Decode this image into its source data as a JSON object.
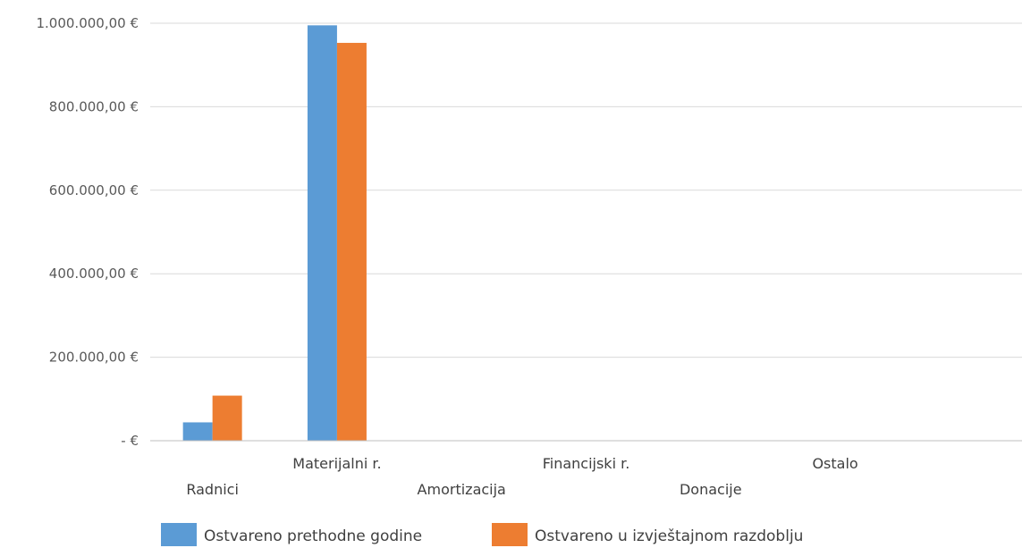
{
  "chart_data": {
    "type": "bar",
    "categories": [
      "Radnici",
      "Materijalni r.",
      "Amortizacija",
      "Financijski r.",
      "Donacije",
      "Ostalo"
    ],
    "series": [
      {
        "name": "Ostvareno prethodne godine",
        "color": "#5b9bd5",
        "values": [
          44000,
          995000,
          0,
          0,
          0,
          0
        ]
      },
      {
        "name": "Ostvareno u izvještajnom razdoblju",
        "color": "#ed7d31",
        "values": [
          108000,
          953000,
          0,
          0,
          0,
          0
        ]
      }
    ],
    "y_ticks": [
      "-  €",
      "200.000,00 €",
      "400.000,00 €",
      "600.000,00 €",
      "800.000,00 €",
      "1.000.000,00 €"
    ],
    "ylim": [
      0,
      1000000
    ],
    "grid": true,
    "legend_position": "bottom"
  }
}
